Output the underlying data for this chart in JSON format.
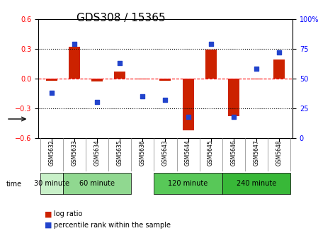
{
  "title": "GDS308 / 15365",
  "samples": [
    "GSM5632",
    "GSM5633",
    "GSM5634",
    "GSM5635",
    "GSM5636",
    "GSM5643",
    "GSM5644",
    "GSM5645",
    "GSM5646",
    "GSM5647",
    "GSM5648"
  ],
  "log_ratio": [
    -0.02,
    0.32,
    -0.03,
    0.07,
    -0.01,
    -0.02,
    -0.52,
    0.29,
    -0.38,
    -0.01,
    0.19
  ],
  "percentile_rank": [
    38,
    79,
    30,
    63,
    35,
    32,
    18,
    79,
    18,
    58,
    72
  ],
  "groups": [
    {
      "label": "30 minute",
      "start": 0,
      "end": 1,
      "color": "#ccffcc"
    },
    {
      "label": "60 minute",
      "start": 1,
      "end": 4,
      "color": "#99ee99"
    },
    {
      "label": "120 minute",
      "start": 5,
      "end": 8,
      "color": "#66dd66"
    },
    {
      "label": "240 minute",
      "start": 8,
      "end": 11,
      "color": "#44cc44"
    }
  ],
  "bar_color": "#cc2200",
  "dot_color": "#2244cc",
  "ylim_left": [
    -0.6,
    0.6
  ],
  "ylim_right": [
    0,
    100
  ],
  "yticks_left": [
    -0.6,
    -0.3,
    0.0,
    0.3,
    0.6
  ],
  "yticks_right": [
    0,
    25,
    50,
    75,
    100
  ],
  "hlines": [
    0.3,
    0.0,
    -0.3
  ],
  "background_color": "#ffffff",
  "plot_bg": "#ffffff"
}
